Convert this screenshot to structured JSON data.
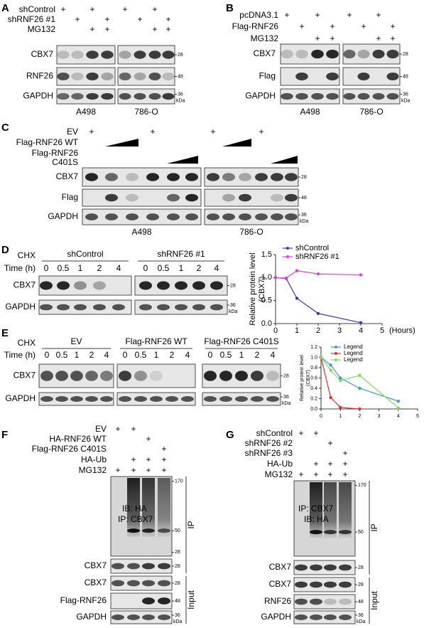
{
  "panels": {
    "A": {
      "label": "A",
      "treatments": [
        {
          "name": "shControl",
          "marks": [
            "+",
            null,
            "+",
            null,
            "+",
            null,
            "+",
            null
          ]
        },
        {
          "name": "shRNF26 #1",
          "marks": [
            null,
            "+",
            null,
            "+",
            null,
            "+",
            null,
            "+"
          ]
        },
        {
          "name": "MG132",
          "marks": [
            null,
            null,
            "+",
            "+",
            null,
            null,
            "+",
            "+"
          ]
        }
      ],
      "blots": [
        {
          "name": "CBX7",
          "marker": "28"
        },
        {
          "name": "RNF26",
          "marker": "48"
        },
        {
          "name": "GAPDH",
          "marker": "36",
          "unit": "kDa"
        }
      ],
      "cell_lines": [
        "A498",
        "786-O"
      ]
    },
    "B": {
      "label": "B",
      "treatments": [
        {
          "name": "pcDNA3.1",
          "marks": [
            "+",
            null,
            "+",
            null,
            "+",
            null,
            "+",
            null
          ]
        },
        {
          "name": "Flag-RNF26",
          "marks": [
            null,
            "+",
            null,
            "+",
            null,
            "+",
            null,
            "+"
          ]
        },
        {
          "name": "MG132",
          "marks": [
            null,
            null,
            "+",
            "+",
            null,
            null,
            "+",
            "+"
          ]
        }
      ],
      "blots": [
        {
          "name": "CBX7",
          "marker": "28"
        },
        {
          "name": "Flag",
          "marker": "48"
        },
        {
          "name": "GAPDH",
          "marker": "36",
          "unit": "kDa"
        }
      ],
      "cell_lines": [
        "A498",
        "786-O"
      ]
    },
    "C": {
      "label": "C",
      "treatments": [
        {
          "name": "EV",
          "marks": [
            "+",
            null,
            null,
            "+",
            null,
            null,
            "+",
            null,
            null,
            "+",
            null,
            null
          ]
        },
        {
          "name": "Flag-RNF26 WT"
        },
        {
          "name": [
            "Flag-RNF26",
            "C401S"
          ]
        }
      ],
      "blots": [
        {
          "name": "CBX7",
          "marker": "28"
        },
        {
          "name": "Flag",
          "marker": "48"
        },
        {
          "name": "GAPDH",
          "marker": "36",
          "unit": "kDa"
        }
      ],
      "cell_lines": [
        "A498",
        "786-O"
      ]
    },
    "D": {
      "label": "D",
      "treatment": "CHX",
      "time_label": "Time (h)",
      "groups": [
        {
          "name": "shControl",
          "times": [
            "0",
            "0.5",
            "1",
            "2",
            "4"
          ]
        },
        {
          "name": "shRNF26 #1",
          "times": [
            "0",
            "0.5",
            "1",
            "2",
            "4"
          ]
        }
      ],
      "blots": [
        {
          "name": "CBX7",
          "marker": "28"
        },
        {
          "name": "GAPDH",
          "marker": "36",
          "unit": "kDa"
        }
      ]
    },
    "E": {
      "label": "E",
      "treatment": "CHX",
      "time_label": "Time (h)",
      "groups": [
        {
          "name": "EV",
          "times": [
            "0",
            "0.5",
            "1",
            "2",
            "4"
          ]
        },
        {
          "name": "Flag-RNF26 WT",
          "times": [
            "0",
            "0.5",
            "1",
            "2",
            "4"
          ]
        },
        {
          "name": "Flag-RNF26 C401S",
          "times": [
            "0",
            "0.5",
            "1",
            "2",
            "4"
          ]
        }
      ],
      "blots": [
        {
          "name": "CBX7",
          "marker": "28"
        },
        {
          "name": "GAPDH",
          "marker": "36",
          "unit": "kDa"
        }
      ]
    },
    "F": {
      "label": "F",
      "treatments": [
        {
          "name": "EV",
          "marks": [
            "+",
            "+",
            null,
            null
          ]
        },
        {
          "name": "HA-RNF26 WT",
          "marks": [
            null,
            null,
            "+",
            null
          ]
        },
        {
          "name": "Flag-RNF26 C401S",
          "marks": [
            null,
            null,
            null,
            "+"
          ]
        },
        {
          "name": "HA-Ub",
          "marks": [
            null,
            "+",
            "+",
            "+"
          ]
        },
        {
          "name": "MG132",
          "marks": [
            "+",
            "+",
            "+",
            "+"
          ]
        }
      ],
      "ip": {
        "texts": [
          "IB: HA",
          "IP: CBX7"
        ],
        "markers": [
          "170",
          "50",
          "28"
        ],
        "side": "IP"
      },
      "blots": [
        {
          "name": "CBX7",
          "marker": "28"
        }
      ],
      "input": {
        "blots": [
          {
            "name": "CBX7",
            "marker": "28"
          },
          {
            "name": "Flag-RNF26",
            "marker": "48"
          },
          {
            "name": "GAPDH",
            "marker": "36",
            "unit": "kDa"
          }
        ],
        "side": "Input"
      }
    },
    "G": {
      "label": "G",
      "treatments": [
        {
          "name": "shControl",
          "marks": [
            "+",
            "+",
            null,
            null
          ]
        },
        {
          "name": "shRNF26 #2",
          "marks": [
            null,
            null,
            "+",
            null
          ]
        },
        {
          "name": "shRNF26 #3",
          "marks": [
            null,
            null,
            null,
            "+"
          ]
        },
        {
          "name": "HA-Ub",
          "marks": [
            null,
            "+",
            "+",
            "+"
          ]
        },
        {
          "name": "MG132",
          "marks": [
            "+",
            "+",
            "+",
            "+"
          ]
        }
      ],
      "ip": {
        "texts": [
          "IP: CBX7",
          "IB: HA"
        ],
        "markers": [
          "170",
          "50"
        ],
        "side": "IP"
      },
      "blots": [
        {
          "name": "CBX7",
          "marker": "28"
        }
      ],
      "input": {
        "blots": [
          {
            "name": "CBX7",
            "marker": "28"
          },
          {
            "name": "RNF26",
            "marker": "48"
          },
          {
            "name": "GAPDH",
            "marker": "36",
            "unit": "kDa"
          }
        ],
        "side": "Input"
      }
    }
  },
  "chart_data": [
    {
      "type": "line",
      "x": [
        0,
        0.5,
        1,
        2,
        4
      ],
      "series": [
        {
          "name": "shControl",
          "color": "#3b3ba8",
          "values": [
            1.0,
            0.98,
            0.55,
            0.22,
            0.02
          ]
        },
        {
          "name": "shRNF26 #1",
          "color": "#e040e0",
          "values": [
            1.0,
            0.99,
            1.15,
            1.08,
            1.06
          ]
        }
      ],
      "xlim": [
        0,
        5
      ],
      "xticks": [
        0,
        1,
        2,
        3,
        4,
        5
      ],
      "ylim": [
        0,
        1.5
      ],
      "yticks": [
        {
          "value": 0,
          "label": "0.0"
        },
        {
          "value": 0.5,
          "label": "0.5"
        },
        {
          "value": 1,
          "label": "1.0"
        },
        {
          "value": 1.5,
          "label": "1.5"
        }
      ],
      "ylabel": [
        "Relative protein level",
        "(CBX7)"
      ],
      "xlabel": "(Hours)",
      "legend": "top-left"
    },
    {
      "type": "line",
      "x": [
        0,
        0.5,
        1,
        2,
        4
      ],
      "series": [
        {
          "name": "Legend",
          "color": "#3a9ad9",
          "values": [
            1.0,
            0.85,
            0.6,
            0.4,
            0.15
          ]
        },
        {
          "name": "Legend",
          "color": "#e0302a",
          "values": [
            1.0,
            0.22,
            0.03,
            0.0,
            null
          ]
        },
        {
          "name": "Legend",
          "color": "#7ed957",
          "values": [
            1.0,
            0.75,
            0.55,
            0.65,
            0.02
          ]
        }
      ],
      "xlim": [
        0,
        5
      ],
      "xticks": [
        0,
        1,
        2,
        3,
        4,
        5
      ],
      "ylim": [
        0,
        1.2
      ],
      "yticks": [
        {
          "value": 0,
          "label": "0.0"
        },
        {
          "value": 0.2,
          "label": "0.2"
        },
        {
          "value": 0.4,
          "label": "0.4"
        },
        {
          "value": 0.6,
          "label": "0.6"
        },
        {
          "value": 0.8,
          "label": "0.8"
        },
        {
          "value": 1,
          "label": "1.0"
        },
        {
          "value": 1.2,
          "label": "1.2"
        }
      ],
      "ylabel": [
        "Relative protein level",
        "(CBX7)"
      ],
      "legend": "top-left"
    }
  ]
}
